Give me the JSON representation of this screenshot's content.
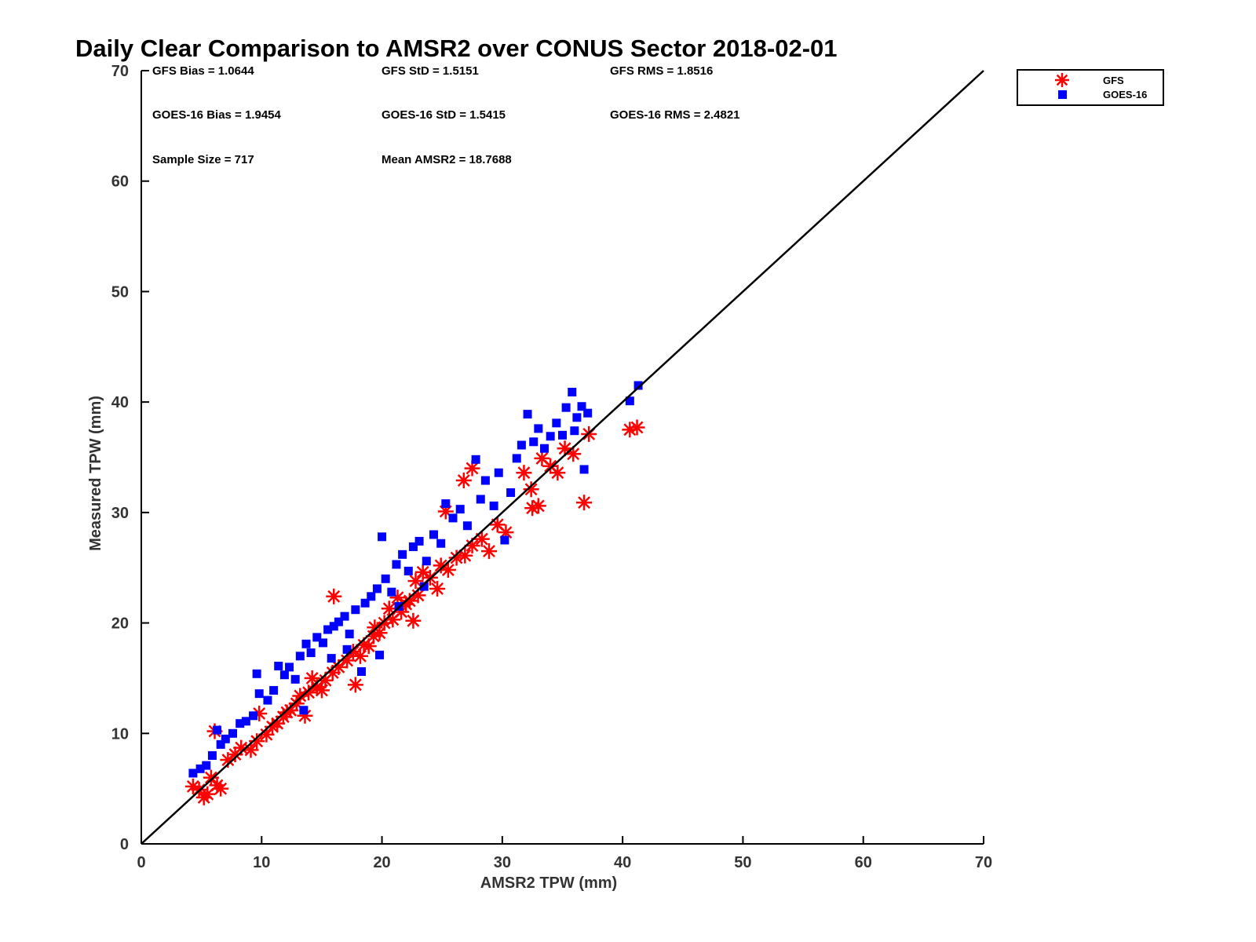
{
  "chart_data": {
    "type": "scatter",
    "title": "Daily Clear Comparison to AMSR2 over CONUS Sector 2018-02-01",
    "xlabel": "AMSR2 TPW (mm)",
    "ylabel": "Measured TPW (mm)",
    "xlim": [
      0,
      70
    ],
    "ylim": [
      0,
      70
    ],
    "x_ticks": [
      "0",
      "10",
      "20",
      "30",
      "40",
      "50",
      "60",
      "70"
    ],
    "y_ticks": [
      "0",
      "10",
      "20",
      "30",
      "40",
      "50",
      "60",
      "70"
    ],
    "grid": false,
    "legend_position": "outside-top-right",
    "reference_line": {
      "from": [
        0,
        0
      ],
      "to": [
        70,
        70
      ],
      "color": "#000000"
    },
    "stats": {
      "gfs_bias": "GFS Bias = 1.0644",
      "gfs_std": "GFS StD = 1.5151",
      "gfs_rms": "GFS RMS = 1.8516",
      "goes_bias": "GOES-16 Bias = 1.9454",
      "goes_std": "GOES-16 StD = 1.5415",
      "goes_rms": "GOES-16 RMS = 2.4821",
      "sample_size": "Sample Size = 717",
      "mean_amsr2": "Mean AMSR2 = 18.7688"
    },
    "series": [
      {
        "name": "GFS",
        "marker": "asterisk",
        "color": "#ff0000",
        "points": [
          [
            4.3,
            5.2
          ],
          [
            4.8,
            4.9
          ],
          [
            5.2,
            4.2
          ],
          [
            5.5,
            4.5
          ],
          [
            6.3,
            5.3
          ],
          [
            6.6,
            5.0
          ],
          [
            5.8,
            6.0
          ],
          [
            6.1,
            10.2
          ],
          [
            7.2,
            7.6
          ],
          [
            7.8,
            8.1
          ],
          [
            8.3,
            8.7
          ],
          [
            9.1,
            8.5
          ],
          [
            9.6,
            9.3
          ],
          [
            10.4,
            9.9
          ],
          [
            10.9,
            10.6
          ],
          [
            11.3,
            10.9
          ],
          [
            9.8,
            11.8
          ],
          [
            11.8,
            11.5
          ],
          [
            12.4,
            12.1
          ],
          [
            12.9,
            12.7
          ],
          [
            13.6,
            11.6
          ],
          [
            13.2,
            13.4
          ],
          [
            13.9,
            13.7
          ],
          [
            14.6,
            14.2
          ],
          [
            15.0,
            13.9
          ],
          [
            15.3,
            14.8
          ],
          [
            15.9,
            15.5
          ],
          [
            16.4,
            16.0
          ],
          [
            16.0,
            22.4
          ],
          [
            17.1,
            16.6
          ],
          [
            17.8,
            14.4
          ],
          [
            17.6,
            17.4
          ],
          [
            18.2,
            17.0
          ],
          [
            18.5,
            18.0
          ],
          [
            19.3,
            18.8
          ],
          [
            19.8,
            19.1
          ],
          [
            20.2,
            20.0
          ],
          [
            20.9,
            20.3
          ],
          [
            21.6,
            21.0
          ],
          [
            21.3,
            22.3
          ],
          [
            22.0,
            21.7
          ],
          [
            22.6,
            20.2
          ],
          [
            23.0,
            22.5
          ],
          [
            22.8,
            23.8
          ],
          [
            23.4,
            24.6
          ],
          [
            24.0,
            24.1
          ],
          [
            24.6,
            23.1
          ],
          [
            24.9,
            25.2
          ],
          [
            25.5,
            24.8
          ],
          [
            25.3,
            30.1
          ],
          [
            26.2,
            25.9
          ],
          [
            26.9,
            26.1
          ],
          [
            27.5,
            27.0
          ],
          [
            28.3,
            27.6
          ],
          [
            28.9,
            26.5
          ],
          [
            29.6,
            28.9
          ],
          [
            30.3,
            28.2
          ],
          [
            26.8,
            32.9
          ],
          [
            27.5,
            34.0
          ],
          [
            31.8,
            33.6
          ],
          [
            32.4,
            32.1
          ],
          [
            32.5,
            30.4
          ],
          [
            33.0,
            30.6
          ],
          [
            33.3,
            34.9
          ],
          [
            34.0,
            34.2
          ],
          [
            34.6,
            33.6
          ],
          [
            35.2,
            35.8
          ],
          [
            35.9,
            35.3
          ],
          [
            36.8,
            30.9
          ],
          [
            37.2,
            37.1
          ],
          [
            40.6,
            37.5
          ],
          [
            41.2,
            37.7
          ],
          [
            19.4,
            19.6
          ],
          [
            20.6,
            21.3
          ],
          [
            22.3,
            22.0
          ],
          [
            14.2,
            15.0
          ],
          [
            12.1,
            11.9
          ],
          [
            18.9,
            17.9
          ]
        ]
      },
      {
        "name": "GOES-16",
        "marker": "square",
        "color": "#0000ff",
        "points": [
          [
            4.3,
            6.4
          ],
          [
            4.9,
            6.8
          ],
          [
            5.4,
            7.1
          ],
          [
            5.9,
            8.0
          ],
          [
            6.3,
            10.3
          ],
          [
            6.6,
            9.0
          ],
          [
            7.0,
            9.5
          ],
          [
            7.6,
            10.0
          ],
          [
            8.2,
            10.9
          ],
          [
            8.7,
            11.1
          ],
          [
            9.3,
            11.6
          ],
          [
            9.8,
            13.6
          ],
          [
            9.6,
            15.4
          ],
          [
            10.5,
            13.0
          ],
          [
            11.0,
            13.9
          ],
          [
            11.4,
            16.1
          ],
          [
            11.9,
            15.3
          ],
          [
            12.3,
            16.0
          ],
          [
            12.8,
            14.9
          ],
          [
            13.2,
            17.0
          ],
          [
            13.7,
            18.1
          ],
          [
            14.1,
            17.3
          ],
          [
            14.6,
            18.7
          ],
          [
            15.1,
            18.2
          ],
          [
            15.5,
            19.4
          ],
          [
            16.0,
            19.7
          ],
          [
            16.4,
            20.1
          ],
          [
            16.9,
            20.6
          ],
          [
            17.3,
            19.0
          ],
          [
            17.8,
            21.2
          ],
          [
            18.3,
            15.6
          ],
          [
            18.6,
            21.8
          ],
          [
            19.1,
            22.4
          ],
          [
            19.6,
            23.1
          ],
          [
            20.0,
            27.8
          ],
          [
            20.3,
            24.0
          ],
          [
            20.8,
            22.8
          ],
          [
            21.2,
            25.3
          ],
          [
            21.7,
            26.2
          ],
          [
            22.2,
            24.7
          ],
          [
            22.6,
            26.9
          ],
          [
            23.1,
            27.4
          ],
          [
            23.7,
            25.6
          ],
          [
            24.3,
            28.0
          ],
          [
            24.9,
            27.2
          ],
          [
            25.3,
            30.8
          ],
          [
            25.9,
            29.5
          ],
          [
            26.5,
            30.3
          ],
          [
            27.1,
            28.8
          ],
          [
            27.8,
            34.8
          ],
          [
            28.2,
            31.2
          ],
          [
            28.6,
            32.9
          ],
          [
            29.3,
            30.6
          ],
          [
            29.7,
            33.6
          ],
          [
            30.2,
            27.5
          ],
          [
            30.7,
            31.8
          ],
          [
            31.2,
            34.9
          ],
          [
            31.6,
            36.1
          ],
          [
            32.1,
            38.9
          ],
          [
            32.6,
            36.4
          ],
          [
            33.0,
            37.6
          ],
          [
            33.5,
            35.8
          ],
          [
            34.0,
            36.9
          ],
          [
            34.5,
            38.1
          ],
          [
            35.0,
            37.0
          ],
          [
            35.3,
            39.5
          ],
          [
            35.8,
            40.9
          ],
          [
            36.2,
            38.6
          ],
          [
            36.6,
            39.6
          ],
          [
            36.8,
            33.9
          ],
          [
            36.0,
            37.4
          ],
          [
            37.1,
            39.0
          ],
          [
            40.6,
            40.1
          ],
          [
            41.3,
            41.5
          ],
          [
            17.1,
            17.6
          ],
          [
            19.8,
            17.1
          ],
          [
            13.5,
            12.1
          ],
          [
            21.4,
            21.5
          ],
          [
            23.5,
            23.3
          ],
          [
            15.8,
            16.8
          ]
        ]
      }
    ]
  }
}
